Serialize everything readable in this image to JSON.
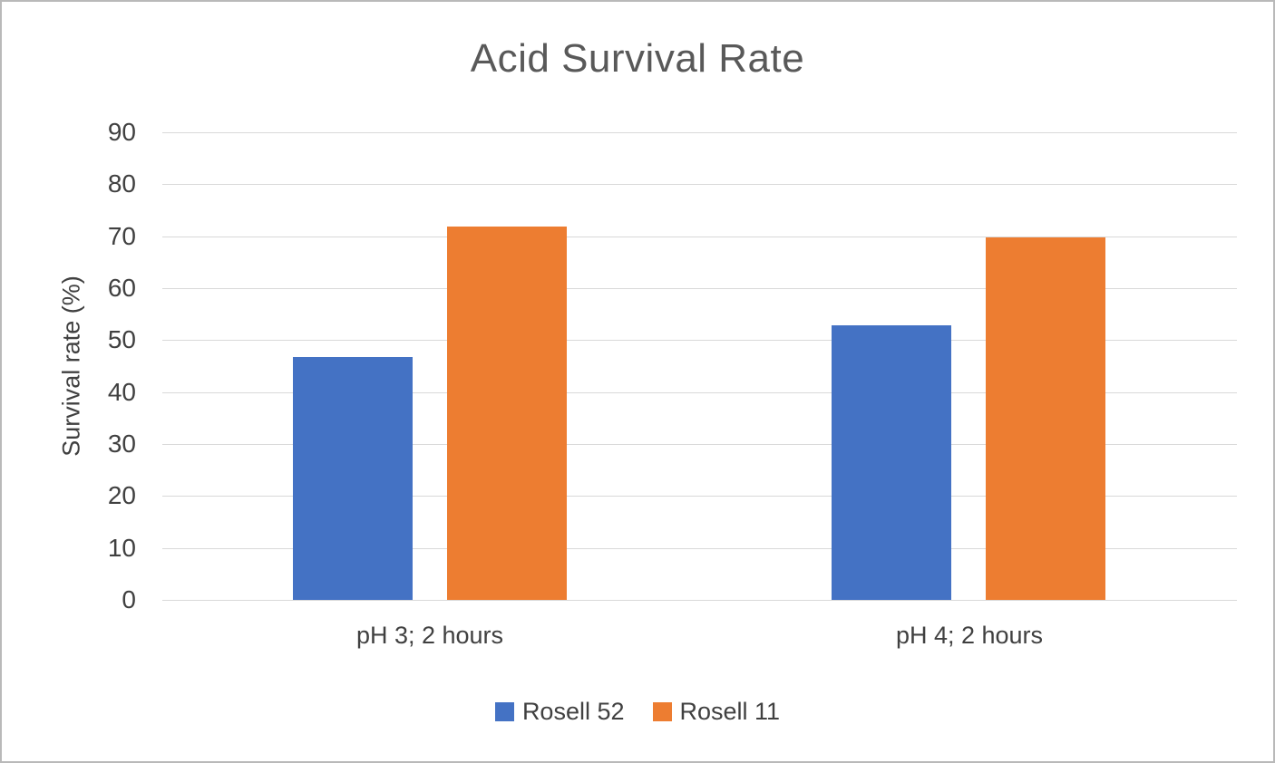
{
  "chart_data": {
    "type": "bar",
    "title": "Acid Survival Rate",
    "ylabel": "Survival rate (%)",
    "xlabel": "",
    "categories": [
      "pH 3; 2 hours",
      "pH 4; 2 hours"
    ],
    "series": [
      {
        "name": "Rosell 52",
        "color": "#4472C4",
        "values": [
          46.7,
          52.8
        ]
      },
      {
        "name": "Rosell 11",
        "color": "#ED7D31",
        "values": [
          71.8,
          69.7
        ]
      }
    ],
    "ylim": [
      0,
      90
    ],
    "yticks": [
      0,
      10,
      20,
      30,
      40,
      50,
      60,
      70,
      80,
      90
    ],
    "grid": true,
    "gridline_color": "#d9d9d9",
    "legend_position": "bottom",
    "title_color": "#595959",
    "axis_text_color": "#404040"
  }
}
